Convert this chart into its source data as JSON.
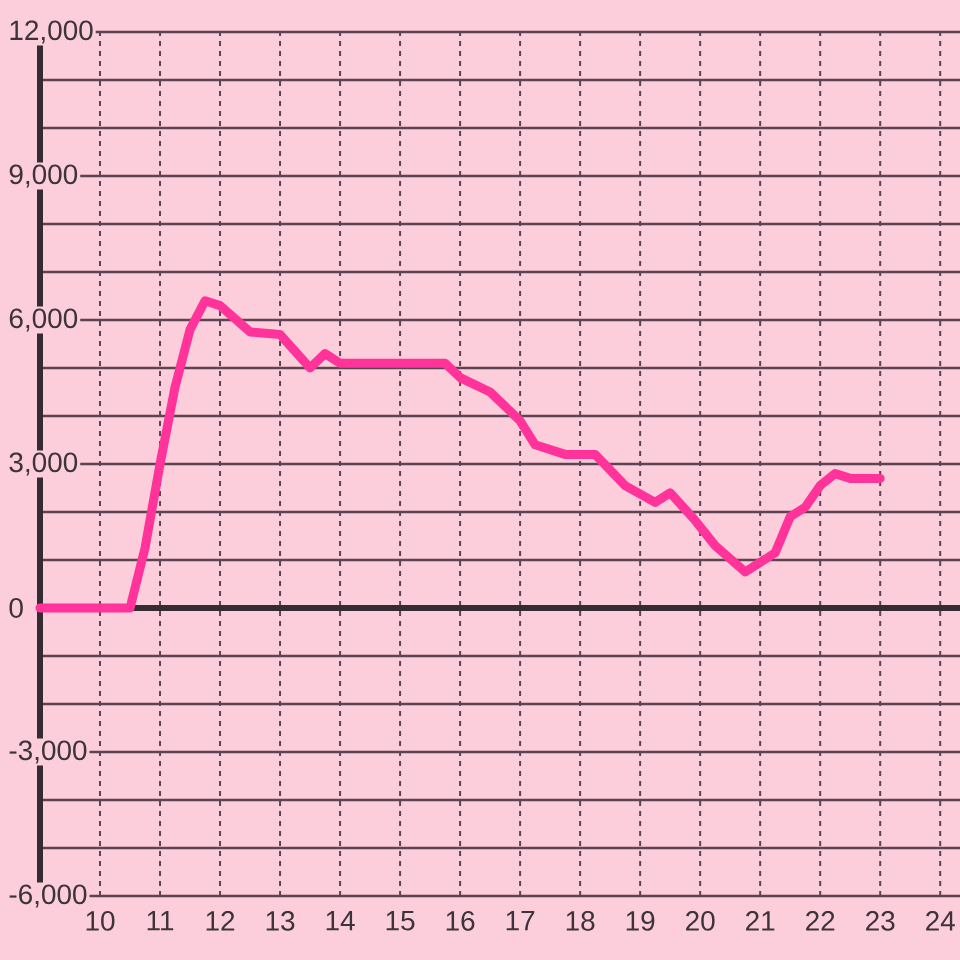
{
  "chart_data": {
    "type": "line",
    "x": [
      9,
      10.5,
      10.75,
      11,
      11.25,
      11.5,
      11.75,
      12,
      12.5,
      13,
      13.5,
      13.75,
      14,
      15.75,
      16,
      16.5,
      17,
      17.25,
      17.75,
      18.25,
      18.75,
      19.25,
      19.5,
      19.9,
      20.25,
      20.75,
      21.25,
      21.5,
      21.75,
      22,
      22.25,
      22.5,
      23
    ],
    "series": [
      {
        "color": "#ff3399",
        "values": [
          0,
          0,
          1250,
          3000,
          4600,
          5800,
          6400,
          6300,
          5750,
          5700,
          5000,
          5300,
          5100,
          5100,
          4800,
          4500,
          3900,
          3400,
          3200,
          3200,
          2550,
          2200,
          2400,
          1850,
          1300,
          750,
          1150,
          1900,
          2100,
          2550,
          2800,
          2700,
          2700
        ]
      }
    ],
    "xlim": [
      9,
      24.33
    ],
    "ylim": [
      -6000,
      12000
    ],
    "xticks": [
      10,
      11,
      12,
      13,
      14,
      15,
      16,
      17,
      18,
      19,
      20,
      21,
      22,
      23,
      24
    ],
    "yticks": [
      {
        "value": -6000,
        "label": "-6,000"
      },
      {
        "value": -5000,
        "label": null
      },
      {
        "value": -4000,
        "label": null
      },
      {
        "value": -3000,
        "label": "-3,000"
      },
      {
        "value": -2000,
        "label": null
      },
      {
        "value": -1000,
        "label": null
      },
      0,
      {
        "value": 1000,
        "label": null
      },
      {
        "value": 2000,
        "label": null
      },
      {
        "value": 3000,
        "label": "3,000"
      },
      {
        "value": 4000,
        "label": null
      },
      {
        "value": 5000,
        "label": null
      },
      {
        "value": 6000,
        "label": "6,000"
      },
      {
        "value": 7000,
        "label": null
      },
      {
        "value": 8000,
        "label": null
      },
      {
        "value": 9000,
        "label": "9,000"
      },
      {
        "value": 10000,
        "label": null
      },
      {
        "value": 11000,
        "label": null
      },
      {
        "value": 12000,
        "label": "12,000"
      }
    ],
    "grid": true
  }
}
